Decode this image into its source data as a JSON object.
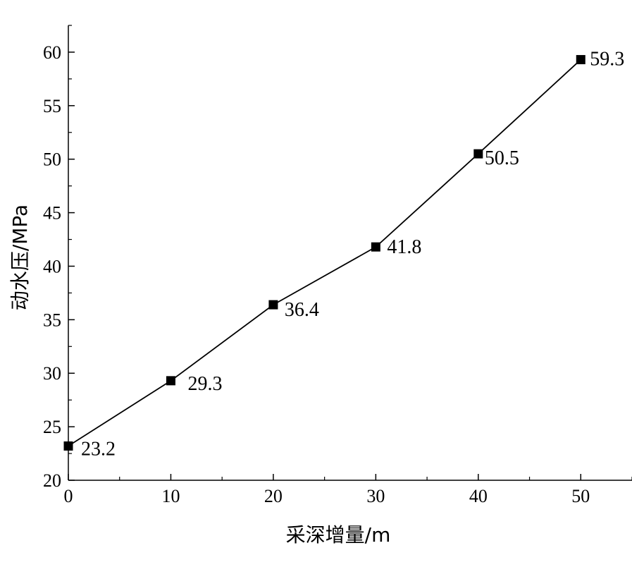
{
  "chart_data": {
    "type": "line",
    "title": "",
    "xlabel": "采深增量/m",
    "ylabel": "动水压/MPa",
    "xlim": [
      0,
      55
    ],
    "ylim": [
      20,
      62.5
    ],
    "x_ticks": [
      0,
      10,
      20,
      30,
      40,
      50
    ],
    "y_ticks": [
      20,
      25,
      30,
      35,
      40,
      45,
      50,
      55,
      60
    ],
    "x_tick_labels": [
      "0",
      "10",
      "20",
      "30",
      "40",
      "50"
    ],
    "y_tick_labels": [
      "20",
      "25",
      "30",
      "35",
      "40",
      "45",
      "50",
      "55",
      "60"
    ],
    "grid": false,
    "legend": "none",
    "colors": {
      "line": "#000000",
      "marker": "#000000"
    },
    "series": [
      {
        "x": [
          0,
          10,
          20,
          30,
          40,
          50
        ],
        "y": [
          23.2,
          29.3,
          36.4,
          41.8,
          50.5,
          59.3
        ],
        "labels": [
          "23.2",
          "29.3",
          "36.4",
          "41.8",
          "50.5",
          "59.3"
        ],
        "marker": "square"
      }
    ]
  }
}
